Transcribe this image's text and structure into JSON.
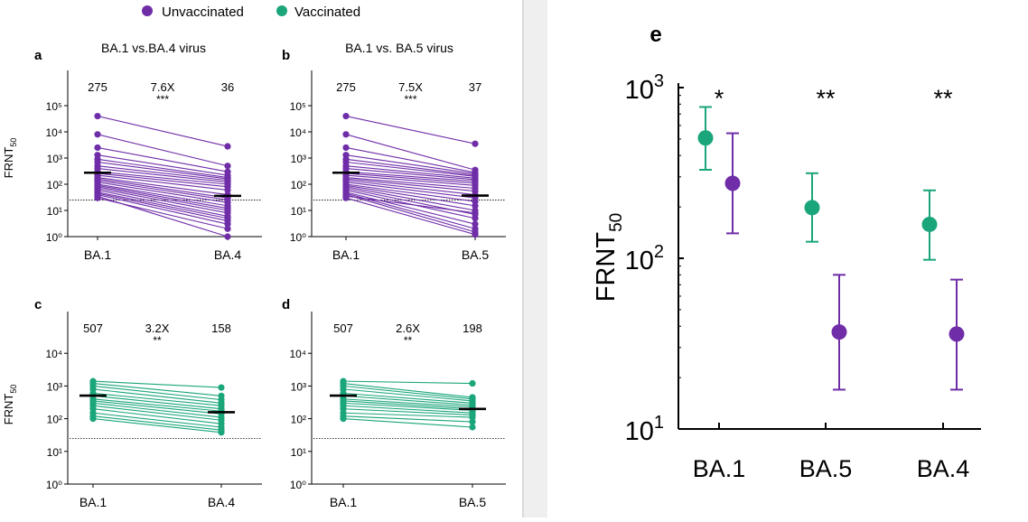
{
  "legend": {
    "items": [
      {
        "label": "Unvaccinated",
        "color": "#6f2da8"
      },
      {
        "label": "Vaccinated",
        "color": "#1aa57a"
      }
    ]
  },
  "colors": {
    "unvaccinated": "#6f2da8",
    "vaccinated": "#1aa57a",
    "median": "#000000"
  },
  "chart_data": [
    {
      "panel": "a",
      "type": "line",
      "title": "BA.1 vs.BA.4 virus",
      "ylabel": "FRNT50",
      "categories": [
        "BA.1",
        "BA.4"
      ],
      "ylim": [
        1,
        1000000
      ],
      "yscale": "log",
      "yticks": [
        1,
        10,
        100,
        1000,
        10000,
        100000
      ],
      "detection_limit": 25,
      "group": "unvaccinated",
      "medians": [
        275,
        36
      ],
      "median_labels": [
        "275",
        "36"
      ],
      "fold_label": "7.6X",
      "significance": "***",
      "pairs": [
        [
          40000,
          2800
        ],
        [
          8000,
          500
        ],
        [
          2500,
          300
        ],
        [
          1300,
          220
        ],
        [
          900,
          180
        ],
        [
          700,
          160
        ],
        [
          500,
          140
        ],
        [
          400,
          120
        ],
        [
          300,
          100
        ],
        [
          260,
          80
        ],
        [
          220,
          60
        ],
        [
          180,
          40
        ],
        [
          160,
          30
        ],
        [
          140,
          25
        ],
        [
          120,
          20
        ],
        [
          100,
          15
        ],
        [
          90,
          12
        ],
        [
          80,
          10
        ],
        [
          70,
          8
        ],
        [
          60,
          6
        ],
        [
          50,
          5
        ],
        [
          45,
          4
        ],
        [
          40,
          3
        ],
        [
          30,
          2
        ],
        [
          35,
          1
        ]
      ]
    },
    {
      "panel": "b",
      "type": "line",
      "title": "BA.1 vs. BA.5 virus",
      "ylabel": "",
      "categories": [
        "BA.1",
        "BA.5"
      ],
      "ylim": [
        1,
        1000000
      ],
      "yscale": "log",
      "yticks": [
        1,
        10,
        100,
        1000,
        10000,
        100000
      ],
      "detection_limit": 25,
      "group": "unvaccinated",
      "medians": [
        275,
        37
      ],
      "median_labels": [
        "275",
        "37"
      ],
      "fold_label": "7.5X",
      "significance": "***",
      "pairs": [
        [
          40000,
          3500
        ],
        [
          8000,
          350
        ],
        [
          2500,
          280
        ],
        [
          1300,
          250
        ],
        [
          900,
          220
        ],
        [
          700,
          200
        ],
        [
          500,
          170
        ],
        [
          400,
          150
        ],
        [
          300,
          130
        ],
        [
          260,
          110
        ],
        [
          220,
          90
        ],
        [
          180,
          70
        ],
        [
          160,
          55
        ],
        [
          140,
          40
        ],
        [
          120,
          30
        ],
        [
          100,
          22
        ],
        [
          90,
          15
        ],
        [
          80,
          10
        ],
        [
          70,
          7
        ],
        [
          60,
          5
        ],
        [
          50,
          3
        ],
        [
          45,
          2
        ],
        [
          40,
          1.5
        ],
        [
          30,
          1.2
        ],
        [
          35,
          8
        ]
      ]
    },
    {
      "panel": "c",
      "type": "line",
      "title": "",
      "ylabel": "FRNT50",
      "categories": [
        "BA.1",
        "BA.4"
      ],
      "ylim": [
        1,
        100000
      ],
      "yscale": "log",
      "yticks": [
        1,
        10,
        100,
        1000,
        10000
      ],
      "detection_limit": 25,
      "group": "vaccinated",
      "medians": [
        507,
        158
      ],
      "median_labels": [
        "507",
        "158"
      ],
      "fold_label": "3.2X",
      "significance": "**",
      "pairs": [
        [
          1400,
          900
        ],
        [
          1200,
          500
        ],
        [
          1000,
          380
        ],
        [
          800,
          300
        ],
        [
          600,
          250
        ],
        [
          500,
          200
        ],
        [
          400,
          170
        ],
        [
          350,
          140
        ],
        [
          300,
          110
        ],
        [
          250,
          90
        ],
        [
          200,
          70
        ],
        [
          150,
          55
        ],
        [
          120,
          45
        ],
        [
          100,
          38
        ]
      ]
    },
    {
      "panel": "d",
      "type": "line",
      "title": "",
      "ylabel": "",
      "categories": [
        "BA.1",
        "BA.5"
      ],
      "ylim": [
        1,
        100000
      ],
      "yscale": "log",
      "yticks": [
        1,
        10,
        100,
        1000,
        10000
      ],
      "detection_limit": 25,
      "group": "vaccinated",
      "medians": [
        507,
        198
      ],
      "median_labels": [
        "507",
        "198"
      ],
      "fold_label": "2.6X",
      "significance": "**",
      "pairs": [
        [
          1400,
          1200
        ],
        [
          1200,
          450
        ],
        [
          1000,
          400
        ],
        [
          800,
          350
        ],
        [
          600,
          300
        ],
        [
          500,
          260
        ],
        [
          400,
          230
        ],
        [
          350,
          200
        ],
        [
          300,
          180
        ],
        [
          250,
          150
        ],
        [
          200,
          130
        ],
        [
          150,
          110
        ],
        [
          120,
          80
        ],
        [
          100,
          55
        ]
      ]
    },
    {
      "panel": "e",
      "type": "scatter",
      "title": "",
      "ylabel": "FRNT50",
      "categories": [
        "BA.1",
        "BA.5",
        "BA.4"
      ],
      "ylim": [
        10,
        1000
      ],
      "yscale": "log",
      "yticks": [
        10,
        100,
        1000
      ],
      "significance": [
        "*",
        "**",
        "**"
      ],
      "series": [
        {
          "group": "vaccinated",
          "values": [
            507,
            198,
            158
          ],
          "lower": [
            330,
            125,
            98
          ],
          "upper": [
            770,
            315,
            250
          ]
        },
        {
          "group": "unvaccinated",
          "values": [
            275,
            37,
            36
          ],
          "lower": [
            140,
            17,
            17
          ],
          "upper": [
            540,
            80,
            75
          ]
        }
      ]
    }
  ]
}
